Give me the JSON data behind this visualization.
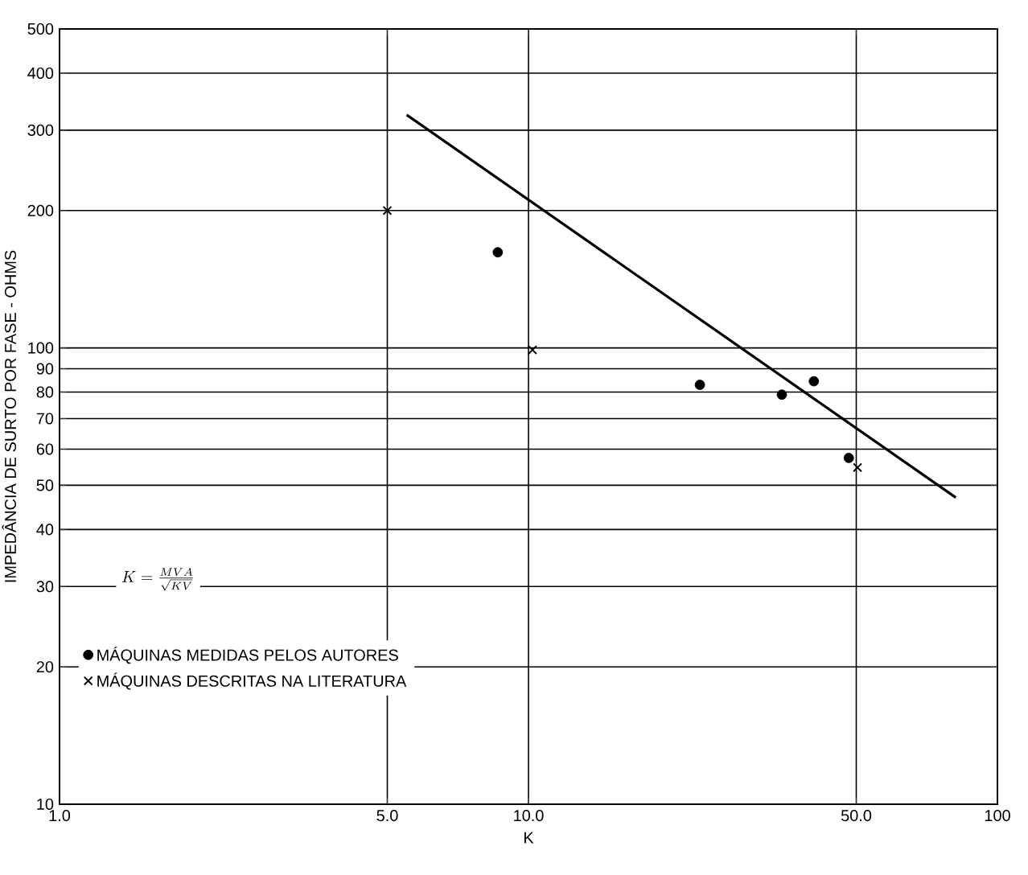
{
  "chart_data": {
    "type": "scatter",
    "xlabel": "K",
    "ylabel": "IMPEDÂNCIA DE SURTO POR FASE - OHMS",
    "log": "xy",
    "grid": true,
    "legend": "bottom left",
    "xlim": [
      1,
      100
    ],
    "ylim": [
      10,
      500
    ],
    "xticks": [
      {
        "value": 1,
        "label": "1.0"
      },
      {
        "value": 5,
        "label": "5.0"
      },
      {
        "value": 10,
        "label": "10.0"
      },
      {
        "value": 50,
        "label": "50.0"
      },
      100
    ],
    "yticks": [
      10,
      20,
      30,
      40,
      50,
      60,
      70,
      80,
      90,
      100,
      200,
      300,
      400,
      500
    ],
    "annotations": [
      "K=\\frac{MVA}{\\sqrt{KV}}"
    ],
    "series": [
      {
        "name": "MÁQUINAS MEDIDAS PELOS AUTORES",
        "color": "#000000",
        "marker": "circle",
        "x": [
          8.6,
          23.2,
          34.7,
          40.6,
          48.2
        ],
        "values": [
          162,
          83,
          79,
          84.5,
          57.4
        ]
      },
      {
        "name": "MÁQUINAS DESCRITAS NA LITERATURA",
        "color": "#000000",
        "marker": "cross",
        "x": [
          5,
          10.2,
          50.3
        ],
        "values": [
          200,
          99,
          54.7
        ]
      },
      {
        "type": "line",
        "color": "#000000",
        "marker": "none",
        "x": [
          5.5,
          81.5
        ],
        "values": [
          324,
          47
        ]
      }
    ]
  }
}
